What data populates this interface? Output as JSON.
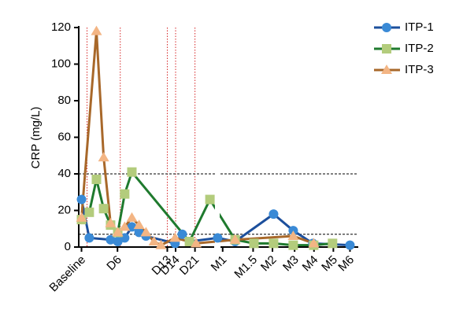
{
  "chart_data": {
    "type": "line",
    "y_label": "CRP (mg/L)",
    "xlim": [
      -1,
      100
    ],
    "xticks": [
      {
        "value": 0,
        "label": "Baseline"
      },
      {
        "value": 13,
        "label": "D6"
      },
      {
        "value": 31,
        "label": "D13"
      },
      {
        "value": 34,
        "label": "D14"
      },
      {
        "value": 41,
        "label": "D21"
      },
      {
        "value": 51,
        "label": "M1"
      },
      {
        "value": 62,
        "label": "M1.5"
      },
      {
        "value": 69,
        "label": "M2"
      },
      {
        "value": 77,
        "label": "M3"
      },
      {
        "value": 84,
        "label": "M4"
      },
      {
        "value": 91,
        "label": "M5"
      },
      {
        "value": 97,
        "label": "M6"
      }
    ],
    "ylim": [
      0,
      120
    ],
    "yticks": [
      0,
      20,
      40,
      60,
      80,
      100,
      120
    ],
    "hlines": [
      40,
      7
    ],
    "vlines": [
      2,
      14,
      31,
      34,
      41
    ],
    "legend": "upper right",
    "series": [
      {
        "name": "ITP-1",
        "color": "#1c4f9c",
        "marker_color": "#3a8ad6",
        "marker": "circle",
        "x": [
          0,
          2.8,
          10.5,
          13.1,
          15.6,
          18.2,
          20.8,
          23.3,
          33.8,
          36.4,
          39,
          49.2,
          55.5,
          69.4,
          76.5,
          83.6,
          97
        ],
        "values": [
          26,
          5,
          4,
          3,
          5,
          11,
          8,
          6,
          2,
          7,
          3,
          5,
          3,
          18,
          9,
          2,
          1
        ]
      },
      {
        "name": "ITP-2",
        "color": "#1f7a2e",
        "marker_color": "#b3cc7c",
        "marker": "square",
        "x": [
          0,
          2.8,
          5.4,
          8,
          10.5,
          13.1,
          15.6,
          18.2,
          39,
          46.4,
          55.5,
          62.3,
          69.4,
          76.5,
          83.9,
          90.7
        ],
        "values": [
          15,
          19,
          37,
          21,
          12,
          8,
          29,
          41,
          3,
          26,
          4,
          2,
          2,
          1,
          1,
          2
        ]
      },
      {
        "name": "ITP-3",
        "color": "#a8682a",
        "marker_color": "#f3b584",
        "marker": "triangle",
        "x": [
          0,
          5.4,
          8,
          10.5,
          13.1,
          15.6,
          18.2,
          20.8,
          23.3,
          26.2,
          28.7,
          33.8,
          41.4,
          55.5,
          76.5,
          83.9
        ],
        "values": [
          16,
          118,
          49,
          13,
          8,
          11,
          16,
          12,
          8,
          3,
          1,
          5,
          2,
          4,
          6,
          2
        ]
      }
    ]
  }
}
